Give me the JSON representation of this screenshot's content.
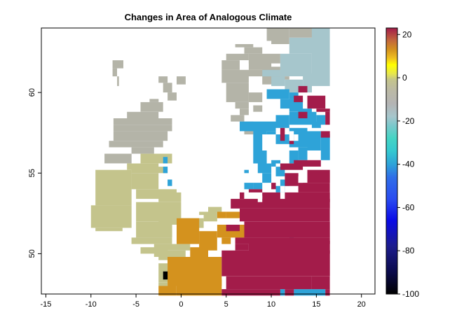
{
  "title": "Changes in Area of Analogous Climate",
  "chart_data": {
    "type": "heatmap",
    "title": "Changes in Area of Analogous Climate",
    "xlim": [
      -15.5,
      21.5
    ],
    "ylim": [
      47.5,
      64
    ],
    "x_ticks": [
      -15,
      -10,
      -5,
      0,
      5,
      10,
      15,
      20
    ],
    "y_ticks": [
      50,
      55,
      60
    ],
    "colorbar": {
      "ticks": [
        20,
        0,
        -20,
        -40,
        -60,
        -80,
        -100
      ],
      "range": [
        -100,
        23
      ],
      "stops": [
        {
          "value": -100,
          "color": "#000000"
        },
        {
          "value": -90,
          "color": "#0a0a4a"
        },
        {
          "value": -78,
          "color": "#1c1c8c"
        },
        {
          "value": -66,
          "color": "#0a0ae6"
        },
        {
          "value": -56,
          "color": "#2a4cf0"
        },
        {
          "value": -46,
          "color": "#2f6ee8"
        },
        {
          "value": -40,
          "color": "#2ea3d8"
        },
        {
          "value": -34,
          "color": "#34c8d0"
        },
        {
          "value": -28,
          "color": "#44d4c4"
        },
        {
          "value": -22,
          "color": "#7cc8cc"
        },
        {
          "value": -18,
          "color": "#a6c6cc"
        },
        {
          "value": -12,
          "color": "#b4b4b4"
        },
        {
          "value": -6,
          "color": "#bbb9a6"
        },
        {
          "value": -1,
          "color": "#c4c48c"
        },
        {
          "value": 2,
          "color": "#e8e84a"
        },
        {
          "value": 6,
          "color": "#ffff00"
        },
        {
          "value": 9,
          "color": "#f0c020"
        },
        {
          "value": 13,
          "color": "#d4921e"
        },
        {
          "value": 17,
          "color": "#c46a3a"
        },
        {
          "value": 23,
          "color": "#a31c4a"
        }
      ]
    },
    "cell_colors": {
      "S": "#c4c48c",
      "G": "#b4b4a8",
      "L": "#a6c6cc",
      "B": "#2ea3d8",
      "M": "#a31c4a",
      "O": "#d4921e",
      "K": "#000000"
    },
    "regions": [
      {
        "c": "G",
        "r": [
          [
            -7.6,
            61.5,
            -6.4,
            62.0
          ],
          [
            -7.6,
            61.0,
            -7.1,
            61.5
          ],
          [
            -7.1,
            60.4,
            -6.9,
            61.0
          ]
        ]
      },
      {
        "c": "G",
        "r": [
          [
            -2.5,
            60.6,
            -1.5,
            61.0
          ],
          [
            -2.0,
            60.0,
            -1.0,
            60.6
          ],
          [
            -1.5,
            59.5,
            -0.5,
            60.0
          ],
          [
            -0.5,
            60.5,
            0.5,
            61.0
          ]
        ]
      },
      {
        "c": "G",
        "r": [
          [
            -4.5,
            58.8,
            -2.0,
            59.4
          ],
          [
            -3.5,
            59.4,
            -2.5,
            59.6
          ],
          [
            -6.0,
            58.4,
            -2.5,
            58.8
          ],
          [
            -7.5,
            58.0,
            -1.0,
            58.4
          ],
          [
            -7.5,
            57.6,
            -1.0,
            58.0
          ],
          [
            -7.5,
            57.0,
            -1.5,
            57.6
          ],
          [
            -8.0,
            56.6,
            -2.0,
            57.0
          ],
          [
            -5.5,
            56.2,
            -3.0,
            56.6
          ],
          [
            -8.5,
            55.6,
            -5.5,
            56.2
          ]
        ]
      },
      {
        "c": "S",
        "r": [
          [
            -4.5,
            55.6,
            -1.0,
            56.2
          ],
          [
            -6.0,
            55.2,
            -2.5,
            55.6
          ],
          [
            -5.5,
            55.0,
            -1.5,
            55.4
          ],
          [
            -9.5,
            53.0,
            -5.5,
            55.2
          ],
          [
            -10.0,
            51.6,
            -5.5,
            53.0
          ],
          [
            -9.5,
            51.4,
            -6.5,
            51.6
          ],
          [
            -5.5,
            54.0,
            -2.5,
            55.0
          ],
          [
            -5.0,
            53.4,
            -0.5,
            54.0
          ],
          [
            -2.5,
            53.2,
            0.0,
            53.8
          ],
          [
            -5.0,
            52.0,
            0.0,
            53.2
          ],
          [
            -2.5,
            51.8,
            1.0,
            52.2
          ],
          [
            -5.0,
            51.0,
            -1.0,
            52.0
          ],
          [
            -5.5,
            50.6,
            -1.0,
            51.0
          ],
          [
            -3.0,
            50.2,
            1.0,
            50.6
          ],
          [
            -4.5,
            50.0,
            -1.5,
            50.4
          ],
          [
            -3.0,
            49.8,
            0.5,
            50.2
          ],
          [
            -2.5,
            49.6,
            0.5,
            49.8
          ],
          [
            -2.5,
            48.2,
            -1.0,
            49.4
          ],
          [
            -2.5,
            48.0,
            -1.5,
            48.2
          ],
          [
            -1.5,
            51.8,
            2.0,
            52.2
          ],
          [
            0.0,
            51.6,
            2.5,
            52.2
          ],
          [
            2.0,
            52.4,
            3.0,
            52.6
          ],
          [
            3.0,
            52.6,
            4.5,
            52.9
          ],
          [
            2.5,
            52.0,
            4.0,
            52.6
          ]
        ]
      },
      {
        "c": "B",
        "r": [
          [
            -2.0,
            55.0,
            -1.5,
            55.4
          ],
          [
            -1.5,
            54.2,
            -1.0,
            54.6
          ],
          [
            -2.0,
            55.6,
            -1.5,
            56.0
          ]
        ]
      },
      {
        "c": "O",
        "r": [
          [
            -0.5,
            50.6,
            2.0,
            52.2
          ],
          [
            2.0,
            50.2,
            4.0,
            51.4
          ],
          [
            1.0,
            49.8,
            3.0,
            50.4
          ],
          [
            4.0,
            51.0,
            7.0,
            51.8
          ],
          [
            4.0,
            52.2,
            5.0,
            52.6
          ],
          [
            5.0,
            52.2,
            6.5,
            52.6
          ],
          [
            4.5,
            50.6,
            5.5,
            51.0
          ],
          [
            -1.5,
            48.0,
            4.5,
            49.8
          ],
          [
            -0.5,
            47.4,
            4.5,
            48.4
          ],
          [
            -2.5,
            47.4,
            -0.5,
            48.0
          ],
          [
            -1.5,
            49.4,
            0.0,
            49.8
          ],
          [
            -1.5,
            48.4,
            -0.5,
            49.0
          ]
        ]
      },
      {
        "c": "K",
        "r": [
          [
            -2.0,
            48.4,
            -1.5,
            48.9
          ]
        ]
      },
      {
        "c": "G",
        "r": [
          [
            4.5,
            60.6,
            7.5,
            61.4
          ],
          [
            4.5,
            61.4,
            6.5,
            62.0
          ],
          [
            5.0,
            62.0,
            7.5,
            62.4
          ],
          [
            7.0,
            62.4,
            9.0,
            62.8
          ],
          [
            6.0,
            62.8,
            8.0,
            63.0
          ],
          [
            6.5,
            61.0,
            9.5,
            61.4
          ],
          [
            9.0,
            60.5,
            11.0,
            61.6
          ],
          [
            7.5,
            61.4,
            10.0,
            62.0
          ],
          [
            7.5,
            61.8,
            11.0,
            62.4
          ],
          [
            10.0,
            60.8,
            12.0,
            61.0
          ],
          [
            9.5,
            63.2,
            11.5,
            64.0
          ],
          [
            10.0,
            63.0,
            12.0,
            64.0
          ],
          [
            12.0,
            63.4,
            15.0,
            64.0
          ]
        ]
      },
      {
        "c": "G",
        "r": [
          [
            5.0,
            59.4,
            7.5,
            60.6
          ],
          [
            6.0,
            59.0,
            7.5,
            59.4
          ],
          [
            5.5,
            58.2,
            7.0,
            58.6
          ],
          [
            6.5,
            58.6,
            7.5,
            59.0
          ],
          [
            7.5,
            59.4,
            9.0,
            60.0
          ],
          [
            8.0,
            58.8,
            9.0,
            59.2
          ],
          [
            7.0,
            57.4,
            8.0,
            58.2
          ]
        ]
      },
      {
        "c": "L",
        "r": [
          [
            9.0,
            61.0,
            11.0,
            61.4
          ],
          [
            11.0,
            61.0,
            14.5,
            62.4
          ],
          [
            12.0,
            62.4,
            14.5,
            63.4
          ],
          [
            14.5,
            60.4,
            16.5,
            64.0
          ],
          [
            11.5,
            60.0,
            13.5,
            60.8
          ],
          [
            13.5,
            60.0,
            14.5,
            61.2
          ],
          [
            10.0,
            60.4,
            11.5,
            61.0
          ]
        ]
      },
      {
        "c": "B",
        "r": [
          [
            9.5,
            59.6,
            12.0,
            60.2
          ],
          [
            12.0,
            59.6,
            13.0,
            60.0
          ],
          [
            11.0,
            59.0,
            12.5,
            59.6
          ],
          [
            12.0,
            58.8,
            13.5,
            59.6
          ],
          [
            13.0,
            58.4,
            14.5,
            59.0
          ],
          [
            6.5,
            57.6,
            10.5,
            58.2
          ],
          [
            10.5,
            57.8,
            12.0,
            58.6
          ],
          [
            12.0,
            58.0,
            15.0,
            58.8
          ],
          [
            15.0,
            58.0,
            16.0,
            58.6
          ],
          [
            14.5,
            57.8,
            15.5,
            58.2
          ],
          [
            8.0,
            55.6,
            9.5,
            57.8
          ],
          [
            9.5,
            56.4,
            10.5,
            57.6
          ],
          [
            10.5,
            56.8,
            12.0,
            57.4
          ],
          [
            12.0,
            56.6,
            14.0,
            57.8
          ],
          [
            14.0,
            56.4,
            15.5,
            57.6
          ],
          [
            15.5,
            55.8,
            16.5,
            57.4
          ],
          [
            13.0,
            55.8,
            14.0,
            56.6
          ],
          [
            12.0,
            55.6,
            13.0,
            56.4
          ],
          [
            8.5,
            55.0,
            10.0,
            55.6
          ],
          [
            9.0,
            54.4,
            10.0,
            55.0
          ],
          [
            10.0,
            55.4,
            11.0,
            55.8
          ],
          [
            10.5,
            54.8,
            11.5,
            55.4
          ],
          [
            11.0,
            54.2,
            12.0,
            54.6
          ],
          [
            8.0,
            54.0,
            9.0,
            54.4
          ],
          [
            7.0,
            54.0,
            8.0,
            54.4
          ],
          [
            10.5,
            53.8,
            11.5,
            54.2
          ],
          [
            7.0,
            55.0,
            7.5,
            55.2
          ],
          [
            10.5,
            51.2,
            11.0,
            51.6
          ],
          [
            12.0,
            51.0,
            12.5,
            51.4
          ],
          [
            14.5,
            48.8,
            15.0,
            49.2
          ],
          [
            11.0,
            47.4,
            11.5,
            47.8
          ],
          [
            12.5,
            47.4,
            16.0,
            47.8
          ]
        ]
      },
      {
        "c": "M",
        "r": [
          [
            13.0,
            60.0,
            14.0,
            60.4
          ],
          [
            12.5,
            59.4,
            13.5,
            59.8
          ],
          [
            14.0,
            59.0,
            16.0,
            59.8
          ],
          [
            15.0,
            58.8,
            16.5,
            59.0
          ],
          [
            13.0,
            58.4,
            14.0,
            58.8
          ],
          [
            16.0,
            58.0,
            16.5,
            58.8
          ],
          [
            11.0,
            57.0,
            11.5,
            57.8
          ],
          [
            12.0,
            56.8,
            12.5,
            57.2
          ],
          [
            15.5,
            57.2,
            16.5,
            57.6
          ],
          [
            11.0,
            55.2,
            13.5,
            55.6
          ],
          [
            12.5,
            55.4,
            15.5,
            55.8
          ],
          [
            14.0,
            54.4,
            16.5,
            55.2
          ],
          [
            11.5,
            54.2,
            13.0,
            55.0
          ],
          [
            13.0,
            53.8,
            16.5,
            54.4
          ],
          [
            10.0,
            54.0,
            10.5,
            54.4
          ],
          [
            7.5,
            53.8,
            9.0,
            54.0
          ],
          [
            6.5,
            53.4,
            7.0,
            53.8
          ],
          [
            9.0,
            53.2,
            11.0,
            53.8
          ],
          [
            11.5,
            53.2,
            14.0,
            53.8
          ],
          [
            14.0,
            53.2,
            16.5,
            53.8
          ],
          [
            5.5,
            52.8,
            16.5,
            53.4
          ],
          [
            6.5,
            52.0,
            16.5,
            52.8
          ],
          [
            7.0,
            51.0,
            16.5,
            52.0
          ],
          [
            6.0,
            50.6,
            16.5,
            51.0
          ],
          [
            6.0,
            50.2,
            7.5,
            50.6
          ],
          [
            7.5,
            50.0,
            16.5,
            50.8
          ],
          [
            4.5,
            49.8,
            16.5,
            50.2
          ],
          [
            4.5,
            48.6,
            16.5,
            49.8
          ],
          [
            5.0,
            47.8,
            14.5,
            48.6
          ],
          [
            4.5,
            47.4,
            11.0,
            47.8
          ],
          [
            11.5,
            47.4,
            12.5,
            47.8
          ],
          [
            14.5,
            47.8,
            16.5,
            48.6
          ],
          [
            16.0,
            47.4,
            16.5,
            47.8
          ],
          [
            5.0,
            51.4,
            6.5,
            51.8
          ]
        ]
      }
    ],
    "blanks": [
      [
        9.0,
        56.4,
        10.5,
        57.4
      ],
      [
        12.0,
        57.0,
        12.5,
        57.6
      ],
      [
        12.5,
        57.0,
        13.0,
        57.4
      ],
      [
        9.5,
        58.8,
        10.5,
        59.0
      ],
      [
        10.5,
        55.4,
        11.0,
        55.6
      ],
      [
        13.0,
        54.4,
        13.5,
        54.8
      ],
      [
        11.0,
        53.8,
        11.5,
        54.2
      ],
      [
        8.5,
        53.2,
        9.0,
        53.6
      ]
    ]
  }
}
